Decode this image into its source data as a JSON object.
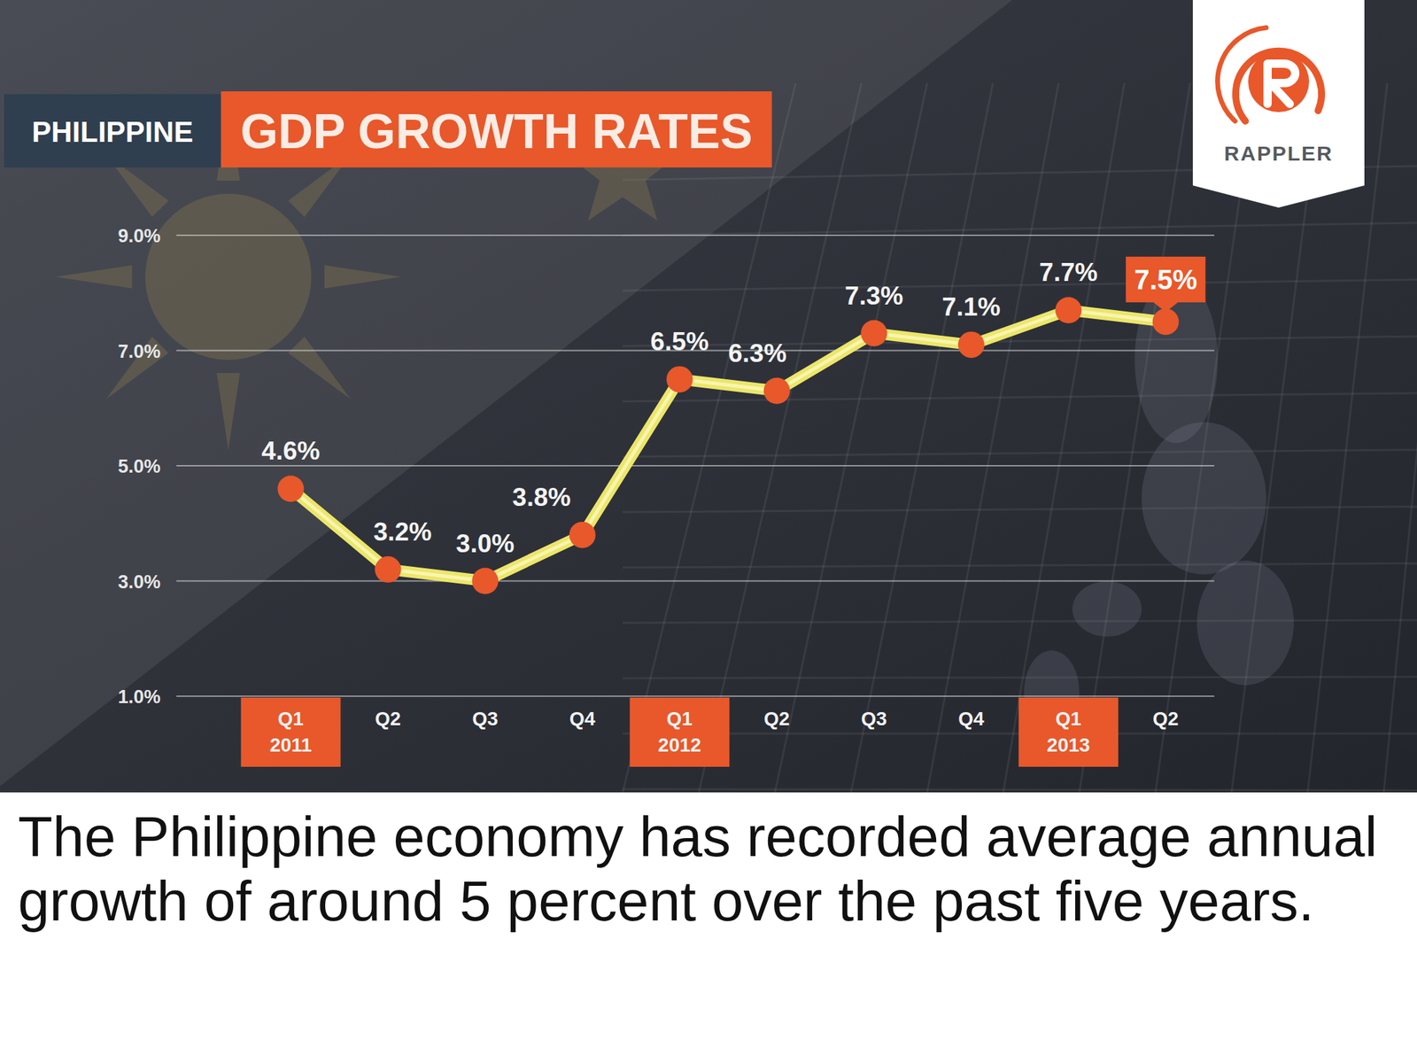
{
  "chart_data": {
    "type": "line",
    "subtitle": "PHILIPPINE",
    "title": "GDP GROWTH RATES",
    "categories": [
      "Q1 2011",
      "Q2",
      "Q3",
      "Q4",
      "Q1 2012",
      "Q2",
      "Q3",
      "Q4",
      "Q1 2013",
      "Q2"
    ],
    "values": [
      4.6,
      3.2,
      3.0,
      3.8,
      6.5,
      6.3,
      7.3,
      7.1,
      7.7,
      7.5
    ],
    "value_labels": [
      "4.6%",
      "3.2%",
      "3.0%",
      "3.8%",
      "6.5%",
      "6.3%",
      "7.3%",
      "7.1%",
      "7.7%",
      "7.5%"
    ],
    "color": "#ece66a",
    "marker": "circle",
    "line_style": "solid",
    "ylim": [
      1,
      9
    ],
    "yticks": [
      {
        "value": 1,
        "label": "1.0%"
      },
      {
        "value": 3,
        "label": "3.0%"
      },
      {
        "value": 5,
        "label": "5.0%"
      },
      {
        "value": 7,
        "label": "7.0%"
      },
      {
        "value": 9,
        "label": "9.0%"
      }
    ],
    "grid": true,
    "data_labels": true
  },
  "logo": "RAPPLER",
  "caption": "The Philippine economy has recorded average annual growth of around 5 percent over the past five years."
}
